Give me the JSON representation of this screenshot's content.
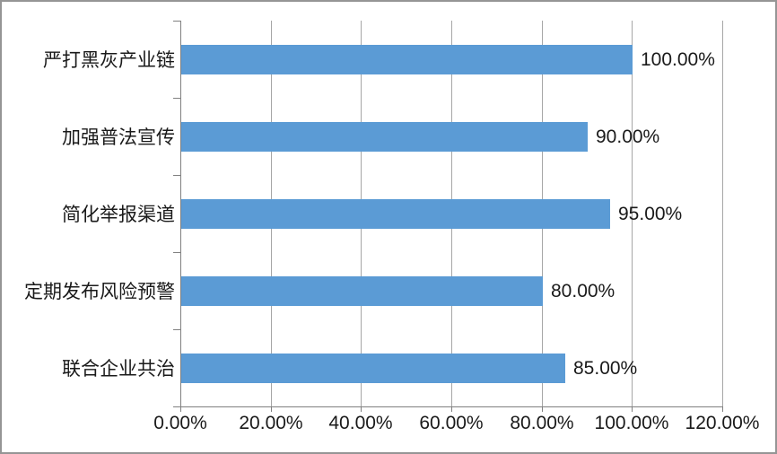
{
  "chart_data": {
    "type": "bar",
    "orientation": "horizontal",
    "title": "",
    "categories": [
      "严打黑灰产业链",
      "加强普法宣传",
      "简化举报渠道",
      "定期发布风险预警",
      "联合企业共治"
    ],
    "values": [
      100.0,
      90.0,
      95.0,
      80.0,
      85.0
    ],
    "value_labels": [
      "100.00%",
      "90.00%",
      "95.00%",
      "80.00%",
      "85.00%"
    ],
    "x_tick_values": [
      0,
      20,
      40,
      60,
      80,
      100,
      120
    ],
    "x_tick_labels": [
      "0.00%",
      "20.00%",
      "40.00%",
      "60.00%",
      "80.00%",
      "100.00%",
      "120.00%"
    ],
    "xlim": [
      0,
      120
    ],
    "grid": true,
    "legend": false,
    "colors": {
      "bar": "#5B9BD5",
      "gridline": "#A6A6A6",
      "axis": "#808080",
      "text": "#1a1a1a",
      "frame_border": "#959595",
      "background": "#ffffff"
    }
  }
}
